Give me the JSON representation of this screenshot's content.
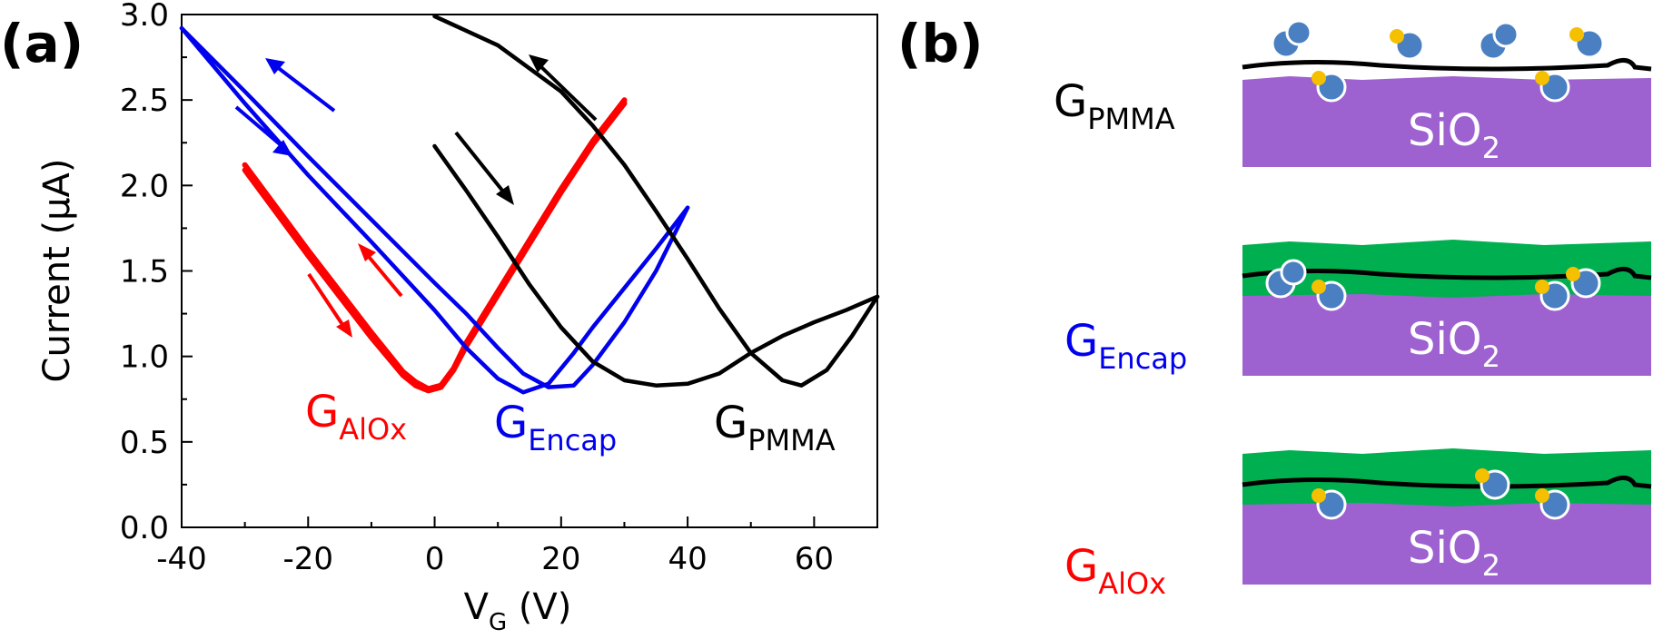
{
  "panels": {
    "a": "(a)",
    "b": "(b)"
  },
  "chart_data": {
    "type": "line",
    "xlabel": {
      "main": "V",
      "sub": "G",
      "unit": " (V)"
    },
    "ylabel": "Current (µA)",
    "xlim": [
      -40,
      70
    ],
    "ylim": [
      0,
      3.0
    ],
    "xticks": [
      -40,
      -20,
      0,
      20,
      40,
      60
    ],
    "xtick_labels": [
      "-40",
      "-20",
      "0",
      "20",
      "40",
      "60"
    ],
    "yticks": [
      0,
      0.5,
      1.0,
      1.5,
      2.0,
      2.5,
      3.0
    ],
    "ytick_labels": [
      "0.0",
      "0.5",
      "1.0",
      "1.5",
      "2.0",
      "2.5",
      "3.0"
    ],
    "grid": false,
    "series": [
      {
        "name": "G_AlOx",
        "label_main": "G",
        "label_sub": "AlOx",
        "color": "#ff0000",
        "sweeps": [
          {
            "x": [
              -30,
              -25,
              -20,
              -15,
              -10,
              -5,
              -3,
              -1,
              1,
              3,
              5,
              10,
              15,
              20,
              25,
              30
            ],
            "y": [
              2.12,
              1.87,
              1.62,
              1.38,
              1.14,
              0.91,
              0.85,
              0.81,
              0.83,
              0.93,
              1.08,
              1.38,
              1.68,
              1.98,
              2.26,
              2.5
            ]
          },
          {
            "x": [
              -30,
              -25,
              -20,
              -15,
              -10,
              -5,
              -3,
              -1,
              1,
              3,
              5,
              10,
              15,
              20,
              25,
              30
            ],
            "y": [
              2.09,
              1.84,
              1.59,
              1.35,
              1.11,
              0.89,
              0.83,
              0.8,
              0.82,
              0.92,
              1.06,
              1.36,
              1.66,
              1.96,
              2.24,
              2.48
            ]
          }
        ]
      },
      {
        "name": "G_Encap",
        "label_main": "G",
        "label_sub": "Encap",
        "color": "#0000ee",
        "sweeps": [
          {
            "x": [
              -40,
              -30,
              -20,
              -10,
              0,
              5,
              10,
              14,
              18,
              22,
              25,
              30,
              35,
              40
            ],
            "y": [
              2.92,
              2.48,
              2.06,
              1.67,
              1.27,
              1.05,
              0.87,
              0.79,
              0.84,
              1.02,
              1.17,
              1.4,
              1.63,
              1.87
            ]
          },
          {
            "x": [
              -40,
              -30,
              -20,
              -10,
              0,
              5,
              10,
              14,
              18,
              22,
              25,
              30,
              35,
              40
            ],
            "y": [
              2.92,
              2.55,
              2.17,
              1.8,
              1.43,
              1.25,
              1.05,
              0.9,
              0.82,
              0.83,
              0.95,
              1.2,
              1.5,
              1.87
            ]
          }
        ]
      },
      {
        "name": "G_PMMA",
        "label_main": "G",
        "label_sub": "PMMA",
        "color": "#000000",
        "sweeps": [
          {
            "x": [
              0,
              5,
              10,
              15,
              20,
              25,
              30,
              35,
              40,
              45,
              50,
              55,
              60,
              65,
              70
            ],
            "y": [
              2.23,
              1.97,
              1.7,
              1.42,
              1.17,
              0.97,
              0.86,
              0.83,
              0.84,
              0.9,
              1.02,
              1.12,
              1.2,
              1.27,
              1.35
            ]
          },
          {
            "x": [
              0,
              10,
              20,
              25,
              30,
              35,
              40,
              45,
              50,
              55,
              58,
              62,
              66,
              70
            ],
            "y": [
              2.99,
              2.82,
              2.55,
              2.35,
              2.12,
              1.85,
              1.57,
              1.28,
              1.02,
              0.86,
              0.83,
              0.92,
              1.12,
              1.35
            ]
          }
        ]
      }
    ]
  },
  "schematic": {
    "rows": [
      {
        "label_main": "G",
        "label_sub": "PMMA",
        "color": "#000000",
        "substrate_main": "SiO",
        "substrate_sub": "2",
        "encapsulated": false
      },
      {
        "label_main": "G",
        "label_sub": "Encap",
        "color": "#0000ee",
        "substrate_main": "SiO",
        "substrate_sub": "2",
        "encapsulated": true
      },
      {
        "label_main": "G",
        "label_sub": "AlOx",
        "color": "#ff0000",
        "substrate_main": "SiO",
        "substrate_sub": "2",
        "encapsulated": true
      }
    ],
    "colors": {
      "substrate": "#9e61d0",
      "encap": "#00b050",
      "molecule_blue": "#4a7fc1",
      "molecule_yellow": "#f5c000"
    }
  }
}
